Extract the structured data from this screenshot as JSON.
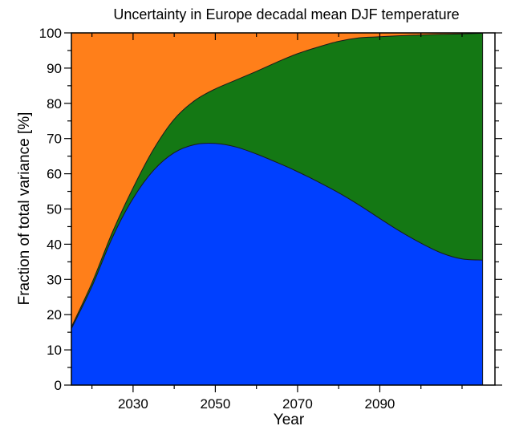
{
  "chart_data": {
    "type": "area",
    "title": "Uncertainty in Europe decadal mean DJF temperature",
    "xlabel": "Year",
    "ylabel": "Fraction of total variance  [%]",
    "xlim": [
      2015,
      2118
    ],
    "ylim": [
      0,
      100
    ],
    "xticks": [
      2030,
      2050,
      2070,
      2090
    ],
    "yticks": [
      0,
      10,
      20,
      30,
      40,
      50,
      60,
      70,
      80,
      90,
      100
    ],
    "grid": false,
    "stacking": "cumulative",
    "x": [
      2015,
      2020,
      2025,
      2030,
      2035,
      2040,
      2045,
      2050,
      2055,
      2060,
      2065,
      2070,
      2075,
      2080,
      2085,
      2090,
      2095,
      2100,
      2105,
      2110,
      2115
    ],
    "series": [
      {
        "color": "#0040ff",
        "values": [
          16,
          28,
          42,
          53,
          61,
          66,
          68.3,
          68.6,
          67.6,
          65.6,
          63.2,
          60.6,
          57.7,
          54.6,
          51.1,
          47.3,
          43.6,
          40.3,
          37.5,
          35.8,
          35.5
        ]
      },
      {
        "color": "#147814",
        "values": [
          0.5,
          1,
          1.5,
          3,
          6,
          9.5,
          12.5,
          15.5,
          19,
          23.5,
          28.5,
          33.5,
          38.3,
          43,
          47.5,
          51.6,
          55.6,
          59.1,
          62.1,
          63.9,
          64.4
        ]
      },
      {
        "color": "#ff7f1a",
        "values": [
          83.5,
          71,
          56.5,
          44,
          33,
          24.5,
          19.2,
          15.9,
          13.4,
          10.9,
          8.3,
          5.9,
          4,
          2.4,
          1.4,
          1.1,
          0.8,
          0.6,
          0.4,
          0.3,
          0.1
        ]
      }
    ]
  }
}
